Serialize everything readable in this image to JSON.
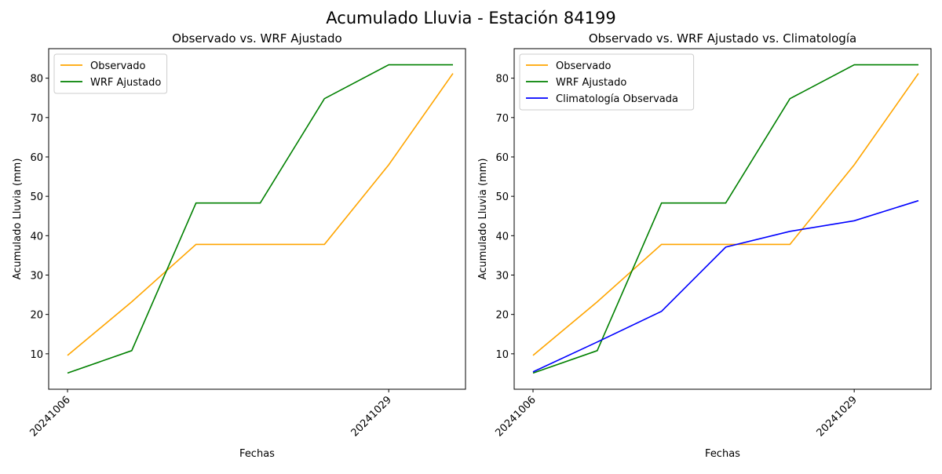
{
  "figure": {
    "suptitle": "Acumulado Lluvia - Estación 84199"
  },
  "chart_data": [
    {
      "type": "line",
      "title": "Observado vs. WRF Ajustado",
      "xlabel": "Fechas",
      "ylabel": "Acumulado Lluvia (mm)",
      "x_tick_labels": [
        "20241006",
        "20241029"
      ],
      "x_tick_index": [
        0,
        5
      ],
      "y_ticks": [
        10,
        20,
        30,
        40,
        50,
        60,
        70,
        80
      ],
      "ylim": [
        1,
        87.5
      ],
      "legend_position": "upper-left",
      "grid": false,
      "series": [
        {
          "name": "Observado",
          "color": "#FFA500",
          "values": [
            9.6,
            23.2,
            37.8,
            37.8,
            37.8,
            58.0,
            81.2
          ]
        },
        {
          "name": "WRF Ajustado",
          "color": "#008000",
          "values": [
            5.1,
            10.8,
            48.3,
            48.3,
            74.8,
            83.4,
            83.4
          ]
        }
      ]
    },
    {
      "type": "line",
      "title": "Observado vs. WRF Ajustado vs. Climatología",
      "xlabel": "Fechas",
      "ylabel": "Acumulado Lluvia (mm)",
      "x_tick_labels": [
        "20241006",
        "20241029"
      ],
      "x_tick_index": [
        0,
        5
      ],
      "y_ticks": [
        10,
        20,
        30,
        40,
        50,
        60,
        70,
        80
      ],
      "ylim": [
        1,
        87.5
      ],
      "legend_position": "upper-left",
      "grid": false,
      "series": [
        {
          "name": "Observado",
          "color": "#FFA500",
          "values": [
            9.6,
            23.2,
            37.8,
            37.8,
            37.8,
            58.0,
            81.2
          ]
        },
        {
          "name": "WRF Ajustado",
          "color": "#008000",
          "values": [
            5.1,
            10.8,
            48.3,
            48.3,
            74.8,
            83.4,
            83.4
          ]
        },
        {
          "name": "Climatología Observada",
          "color": "#0000FF",
          "values": [
            5.4,
            13.0,
            20.8,
            37.1,
            41.1,
            43.8,
            48.9
          ]
        }
      ]
    }
  ]
}
